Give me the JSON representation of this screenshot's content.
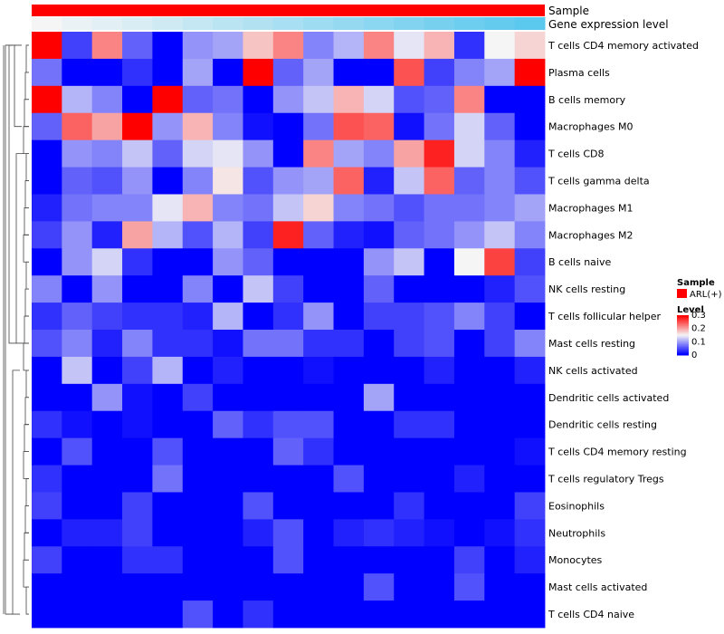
{
  "chart_data": {
    "type": "heatmap",
    "annotations": {
      "sample_label": "Sample",
      "gene_label": "Gene expression level",
      "sample_color": "#ff0000",
      "gene_gradient": [
        "#f5f5f5",
        "#5bc8ee"
      ]
    },
    "rows": [
      "T cells CD4 memory activated",
      "Plasma cells",
      "B cells memory",
      "Macrophages M0",
      "T cells CD8",
      "T cells gamma delta",
      "Macrophages M1",
      "Macrophages M2",
      "B cells naive",
      "NK cells resting",
      "T cells follicular helper",
      "Mast cells resting",
      "NK cells activated",
      "Dendritic cells activated",
      "Dendritic cells resting",
      "T cells CD4 memory resting",
      "T cells regulatory  Tregs",
      "Eosinophils",
      "Neutrophils",
      "Monocytes",
      "Mast cells activated",
      "T cells CD4 naive"
    ],
    "values": [
      [
        0.3,
        0.04,
        0.22,
        0.06,
        0.0,
        0.09,
        0.1,
        0.18,
        0.22,
        0.08,
        0.11,
        0.22,
        0.14,
        0.19,
        0.03,
        0.15,
        0.17
      ],
      [
        0.07,
        0.0,
        0.0,
        0.03,
        0.0,
        0.1,
        0.0,
        0.3,
        0.06,
        0.1,
        0.0,
        0.0,
        0.25,
        0.04,
        0.08,
        0.1,
        0.3
      ],
      [
        0.3,
        0.11,
        0.08,
        0.0,
        0.3,
        0.06,
        0.07,
        0.0,
        0.09,
        0.12,
        0.19,
        0.13,
        0.05,
        0.06,
        0.22,
        0.0,
        0.0
      ],
      [
        0.06,
        0.24,
        0.2,
        0.3,
        0.09,
        0.19,
        0.08,
        0.01,
        0.0,
        0.07,
        0.25,
        0.24,
        0.01,
        0.07,
        0.13,
        0.06,
        0.0
      ],
      [
        0.0,
        0.09,
        0.08,
        0.12,
        0.06,
        0.13,
        0.14,
        0.09,
        0.0,
        0.22,
        0.1,
        0.08,
        0.2,
        0.28,
        0.13,
        0.08,
        0.02
      ],
      [
        0.0,
        0.06,
        0.05,
        0.09,
        0.0,
        0.08,
        0.16,
        0.05,
        0.09,
        0.1,
        0.24,
        0.02,
        0.12,
        0.24,
        0.06,
        0.08,
        0.05
      ],
      [
        0.02,
        0.07,
        0.08,
        0.08,
        0.14,
        0.19,
        0.08,
        0.07,
        0.12,
        0.17,
        0.08,
        0.07,
        0.05,
        0.07,
        0.07,
        0.08,
        0.1
      ],
      [
        0.04,
        0.09,
        0.02,
        0.2,
        0.11,
        0.05,
        0.11,
        0.04,
        0.28,
        0.06,
        0.02,
        0.01,
        0.06,
        0.07,
        0.09,
        0.12,
        0.08
      ],
      [
        0.0,
        0.09,
        0.13,
        0.03,
        0.0,
        0.0,
        0.09,
        0.06,
        0.0,
        0.0,
        0.0,
        0.09,
        0.12,
        0.0,
        0.15,
        0.26,
        0.04
      ],
      [
        0.08,
        0.0,
        0.09,
        0.0,
        0.0,
        0.08,
        0.0,
        0.12,
        0.04,
        0.0,
        0.0,
        0.06,
        0.0,
        0.0,
        0.0,
        0.02,
        0.05
      ],
      [
        0.03,
        0.06,
        0.04,
        0.03,
        0.03,
        0.02,
        0.11,
        0.0,
        0.03,
        0.09,
        0.0,
        0.04,
        0.04,
        0.05,
        0.08,
        0.04,
        0.0
      ],
      [
        0.05,
        0.08,
        0.02,
        0.08,
        0.03,
        0.03,
        0.01,
        0.07,
        0.07,
        0.03,
        0.03,
        0.0,
        0.04,
        0.05,
        0.0,
        0.04,
        0.08
      ],
      [
        0.0,
        0.12,
        0.0,
        0.04,
        0.11,
        0.0,
        0.02,
        0.0,
        0.0,
        0.01,
        0.0,
        0.0,
        0.0,
        0.02,
        0.0,
        0.0,
        0.02
      ],
      [
        0.0,
        0.0,
        0.09,
        0.01,
        0.0,
        0.04,
        0.0,
        0.0,
        0.0,
        0.0,
        0.0,
        0.1,
        0.0,
        0.0,
        0.0,
        0.0,
        0.0
      ],
      [
        0.03,
        0.01,
        0.0,
        0.01,
        0.0,
        0.0,
        0.06,
        0.03,
        0.05,
        0.05,
        0.0,
        0.0,
        0.03,
        0.03,
        0.0,
        0.0,
        0.0
      ],
      [
        0.0,
        0.05,
        0.0,
        0.0,
        0.05,
        0.0,
        0.0,
        0.0,
        0.06,
        0.03,
        0.0,
        0.0,
        0.0,
        0.0,
        0.0,
        0.0,
        0.01
      ],
      [
        0.03,
        0.0,
        0.0,
        0.0,
        0.07,
        0.0,
        0.0,
        0.0,
        0.0,
        0.0,
        0.05,
        0.0,
        0.0,
        0.0,
        0.02,
        0.0,
        0.0
      ],
      [
        0.04,
        0.0,
        0.0,
        0.04,
        0.0,
        0.0,
        0.0,
        0.05,
        0.0,
        0.0,
        0.0,
        0.0,
        0.03,
        0.0,
        0.0,
        0.0,
        0.04
      ],
      [
        0.0,
        0.02,
        0.02,
        0.04,
        0.0,
        0.0,
        0.0,
        0.02,
        0.05,
        0.0,
        0.02,
        0.03,
        0.02,
        0.01,
        0.0,
        0.01,
        0.03
      ],
      [
        0.04,
        0.0,
        0.0,
        0.03,
        0.03,
        0.0,
        0.0,
        0.0,
        0.05,
        0.0,
        0.0,
        0.0,
        0.0,
        0.0,
        0.04,
        0.0,
        0.02
      ],
      [
        0.0,
        0.0,
        0.0,
        0.0,
        0.0,
        0.0,
        0.0,
        0.0,
        0.0,
        0.0,
        0.0,
        0.05,
        0.0,
        0.0,
        0.05,
        0.0,
        0.0
      ],
      [
        0.0,
        0.0,
        0.0,
        0.0,
        0.0,
        0.05,
        0.0,
        0.03,
        0.0,
        0.0,
        0.0,
        0.0,
        0.0,
        0.0,
        0.0,
        0.0,
        0.0
      ]
    ],
    "legend": {
      "sample_title": "Sample",
      "sample_entry": "ARL(+)",
      "level_title": "Level",
      "level_ticks": [
        "0.3",
        "0.2",
        "0.1",
        "0"
      ],
      "level_values": [
        0.3,
        0.2,
        0.1,
        0
      ]
    },
    "color_scale": {
      "min": 0,
      "mid": 0.15,
      "max": 0.3,
      "low": "#0000ff",
      "midColor": "#f5f5f5",
      "high": "#ff0000"
    },
    "dendrogram_merges": [
      [
        9,
        10
      ],
      [
        8,
        11
      ],
      [
        5,
        6
      ],
      [
        12,
        13
      ],
      [
        4,
        7
      ],
      [
        14,
        15
      ],
      [
        16,
        17
      ],
      [
        2,
        3
      ],
      [
        18,
        19
      ],
      [
        20,
        21
      ]
    ]
  }
}
